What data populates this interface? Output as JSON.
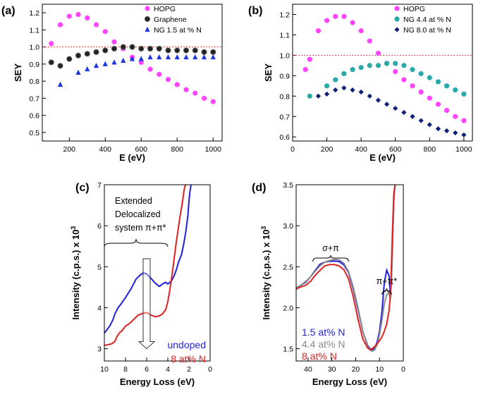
{
  "chart_data": [
    {
      "panel": "(a)",
      "type": "scatter",
      "xlabel": "E (eV)",
      "ylabel": "SEY",
      "xlim": [
        50,
        1050
      ],
      "ylim": [
        0.45,
        1.25
      ],
      "xticks": [
        200,
        400,
        600,
        800,
        1000
      ],
      "yticks": [
        0.5,
        0.6,
        0.7,
        0.8,
        0.9,
        1.0,
        1.1,
        1.2
      ],
      "ytick_labels": [
        "0.5",
        "0.6",
        "0.7",
        "0.8",
        "0.9",
        "1.0",
        "1.1",
        "1.2"
      ],
      "reference_line": 1.0,
      "legend_position": "top-right",
      "series": [
        {
          "name": "HOPG",
          "marker": "circle",
          "color": "#ff44ff",
          "x": [
            100,
            150,
            200,
            250,
            300,
            350,
            400,
            450,
            500,
            550,
            600,
            650,
            700,
            750,
            800,
            850,
            900,
            950,
            1000
          ],
          "y": [
            1.02,
            1.13,
            1.18,
            1.19,
            1.17,
            1.13,
            1.09,
            1.03,
            0.99,
            0.94,
            0.91,
            0.87,
            0.84,
            0.81,
            0.78,
            0.75,
            0.73,
            0.7,
            0.68
          ]
        },
        {
          "name": "Graphene",
          "marker": "circle",
          "color": "#222222",
          "x": [
            100,
            150,
            200,
            250,
            300,
            350,
            400,
            450,
            500,
            550,
            600,
            650,
            700,
            750,
            800,
            850,
            900,
            950,
            1000
          ],
          "y": [
            0.91,
            0.89,
            0.93,
            0.95,
            0.96,
            0.97,
            0.98,
            0.99,
            1.0,
            1.0,
            0.99,
            0.99,
            0.99,
            0.98,
            0.98,
            0.98,
            0.98,
            0.97,
            0.97
          ]
        },
        {
          "name": "NG 1.5 at % N",
          "marker": "triangle",
          "color": "#1a35e6",
          "x": [
            150,
            250,
            300,
            350,
            400,
            450,
            500,
            550,
            600,
            650,
            700,
            750,
            800,
            850,
            900,
            950,
            1000
          ],
          "y": [
            0.78,
            0.85,
            0.87,
            0.89,
            0.9,
            0.91,
            0.92,
            0.93,
            0.93,
            0.94,
            0.94,
            0.94,
            0.94,
            0.94,
            0.94,
            0.94,
            0.94
          ]
        }
      ]
    },
    {
      "panel": "(b)",
      "type": "scatter",
      "xlabel": "E (eV)",
      "ylabel": "SEY",
      "xlim": [
        0,
        1050
      ],
      "ylim": [
        0.58,
        1.25
      ],
      "xticks": [
        0,
        200,
        400,
        600,
        800,
        1000
      ],
      "yticks": [
        0.6,
        0.7,
        0.8,
        0.9,
        1.0,
        1.1,
        1.2
      ],
      "ytick_labels": [
        "0.6",
        "0.7",
        "0.8",
        "0.9",
        "1.0",
        "1.1",
        "1.2"
      ],
      "reference_line": 1.0,
      "legend_position": "top-right",
      "series": [
        {
          "name": "HOPG",
          "marker": "circle",
          "color": "#ff44ff",
          "x": [
            75,
            100,
            150,
            200,
            250,
            300,
            350,
            400,
            450,
            500,
            550,
            600,
            650,
            700,
            750,
            800,
            850,
            900,
            950,
            1000
          ],
          "y": [
            0.93,
            0.98,
            1.12,
            1.17,
            1.19,
            1.19,
            1.16,
            1.12,
            1.07,
            1.01,
            0.96,
            0.92,
            0.88,
            0.85,
            0.82,
            0.79,
            0.76,
            0.73,
            0.7,
            0.68
          ]
        },
        {
          "name": "NG 4.4 at % N",
          "marker": "circle",
          "color": "#2aa9a9",
          "x": [
            100,
            200,
            250,
            300,
            350,
            400,
            450,
            500,
            550,
            600,
            650,
            700,
            750,
            800,
            850,
            900,
            950,
            1000
          ],
          "y": [
            0.8,
            0.85,
            0.88,
            0.91,
            0.93,
            0.94,
            0.95,
            0.95,
            0.96,
            0.96,
            0.95,
            0.93,
            0.91,
            0.89,
            0.87,
            0.85,
            0.83,
            0.81
          ]
        },
        {
          "name": "NG 8.0 at % N",
          "marker": "diamond",
          "color": "#10207a",
          "x": [
            150,
            200,
            250,
            300,
            350,
            400,
            450,
            500,
            550,
            600,
            650,
            700,
            750,
            800,
            850,
            900,
            950,
            1000
          ],
          "y": [
            0.8,
            0.81,
            0.83,
            0.84,
            0.83,
            0.82,
            0.8,
            0.78,
            0.76,
            0.74,
            0.72,
            0.7,
            0.68,
            0.66,
            0.64,
            0.63,
            0.62,
            0.61
          ]
        }
      ]
    },
    {
      "panel": "(c)",
      "type": "line",
      "xlabel": "Energy Loss (eV)",
      "ylabel": "Intensity (c.p.s.) x 10",
      "ylabel_superscript": "3",
      "xlim": [
        10,
        0
      ],
      "ylim": [
        2.7,
        7.0
      ],
      "xticks": [
        10,
        8,
        6,
        4,
        2,
        0
      ],
      "yticks": [
        3,
        4,
        5,
        6,
        7
      ],
      "annotation_lines": [
        "Extended",
        "Delocalized",
        "system π+π*"
      ],
      "bracket_range": [
        10,
        4
      ],
      "arrow_at": 6,
      "arrow_y": [
        4.85,
        3.0
      ],
      "legend_position": "bottom-right",
      "series": [
        {
          "name": "undoped",
          "color": "#1f1fe0",
          "x": [
            10,
            9.8,
            9.5,
            9.2,
            9.0,
            8.7,
            8.4,
            8.0,
            7.5,
            7.0,
            6.6,
            6.3,
            6.0,
            5.6,
            5.2,
            4.8,
            4.5,
            4.2,
            4.0,
            3.8,
            3.6,
            3.4,
            3.2,
            3.0,
            2.7,
            2.5,
            2.3,
            2.1,
            2.0,
            1.9,
            1.8
          ],
          "y": [
            3.38,
            3.45,
            3.55,
            3.7,
            3.85,
            4.0,
            4.1,
            4.25,
            4.45,
            4.7,
            4.8,
            4.85,
            4.82,
            4.72,
            4.6,
            4.52,
            4.58,
            4.62,
            4.58,
            4.62,
            4.68,
            4.78,
            4.92,
            5.1,
            5.3,
            5.55,
            5.85,
            6.25,
            6.6,
            6.85,
            7.0
          ]
        },
        {
          "name": "8 at% N",
          "color": "#e02020",
          "x": [
            10,
            9.6,
            9.3,
            9.0,
            8.8,
            8.6,
            8.3,
            8.0,
            7.6,
            7.2,
            6.8,
            6.4,
            6.0,
            5.6,
            5.2,
            4.8,
            4.5,
            4.2,
            4.0,
            3.8,
            3.6,
            3.4,
            3.2,
            3.0,
            2.8,
            2.6,
            2.5,
            2.4,
            2.3
          ],
          "y": [
            3.08,
            3.1,
            3.12,
            3.18,
            3.3,
            3.38,
            3.45,
            3.55,
            3.62,
            3.72,
            3.82,
            3.86,
            3.88,
            3.82,
            3.78,
            3.8,
            3.85,
            3.95,
            4.15,
            4.45,
            4.8,
            5.2,
            5.6,
            5.95,
            6.3,
            6.6,
            6.8,
            6.95,
            7.0
          ]
        }
      ]
    },
    {
      "panel": "(d)",
      "type": "line",
      "xlabel": "Energy Loss (eV)",
      "ylabel": "Intensity (c.p.s.) x 10",
      "ylabel_superscript": "3",
      "xlim": [
        45,
        0
      ],
      "ylim": [
        1.35,
        3.5
      ],
      "xticks": [
        40,
        30,
        20,
        10,
        0
      ],
      "yticks": [
        1.5,
        2.0,
        2.5,
        3.0,
        3.5
      ],
      "ytick_labels": [
        "1.5",
        "2.0",
        "2.5",
        "3.0",
        "3.5"
      ],
      "annotations": [
        {
          "text": "σ+π",
          "bracket_range": [
            38,
            23
          ]
        },
        {
          "text": "π+π*",
          "bracket_range": [
            9,
            5
          ]
        }
      ],
      "legend_position": "bottom-left",
      "series": [
        {
          "name": "1.5 at% N",
          "color": "#1f1fe0",
          "x": [
            45,
            43,
            41,
            39,
            37,
            35,
            33,
            31,
            29,
            27,
            25,
            23,
            21,
            19,
            17,
            15,
            14,
            13,
            12,
            11,
            10,
            9,
            8,
            7,
            6,
            5.5,
            5,
            4.5,
            4,
            3.5,
            3
          ],
          "y": [
            2.22,
            2.28,
            2.32,
            2.38,
            2.45,
            2.52,
            2.55,
            2.57,
            2.58,
            2.57,
            2.52,
            2.42,
            2.22,
            1.98,
            1.72,
            1.55,
            1.5,
            1.47,
            1.5,
            1.58,
            1.72,
            1.95,
            2.3,
            2.45,
            2.38,
            2.2,
            2.35,
            2.8,
            3.3,
            3.5,
            3.5
          ]
        },
        {
          "name": "4.4 at% N",
          "color": "#8a8a8a",
          "x": [
            45,
            43,
            41,
            39,
            37,
            35,
            33,
            31,
            29,
            27,
            25,
            23,
            21,
            19,
            17,
            15,
            14,
            13,
            12,
            11,
            10,
            9,
            8,
            7,
            6,
            5.5,
            5,
            4.5,
            4,
            3.5,
            3
          ],
          "y": [
            2.24,
            2.28,
            2.33,
            2.38,
            2.44,
            2.5,
            2.55,
            2.58,
            2.6,
            2.59,
            2.54,
            2.43,
            2.24,
            2.0,
            1.72,
            1.54,
            1.48,
            1.46,
            1.48,
            1.55,
            1.68,
            1.85,
            2.05,
            2.15,
            2.18,
            2.1,
            2.3,
            2.8,
            3.3,
            3.5,
            3.5
          ]
        },
        {
          "name": "8 at% N",
          "color": "#e02020",
          "x": [
            45,
            43,
            41,
            39,
            37,
            35,
            33,
            31,
            29,
            27,
            25,
            23,
            21,
            19,
            17,
            15,
            14,
            13,
            12,
            11,
            10,
            9,
            8,
            7,
            6,
            5.5,
            5,
            4.5,
            4,
            3.5
          ],
          "y": [
            2.22,
            2.25,
            2.28,
            2.33,
            2.4,
            2.45,
            2.5,
            2.52,
            2.53,
            2.52,
            2.47,
            2.35,
            2.12,
            1.85,
            1.62,
            1.52,
            1.5,
            1.5,
            1.52,
            1.55,
            1.6,
            1.65,
            1.72,
            1.8,
            1.95,
            2.1,
            2.5,
            3.0,
            3.4,
            3.5
          ]
        }
      ]
    }
  ]
}
